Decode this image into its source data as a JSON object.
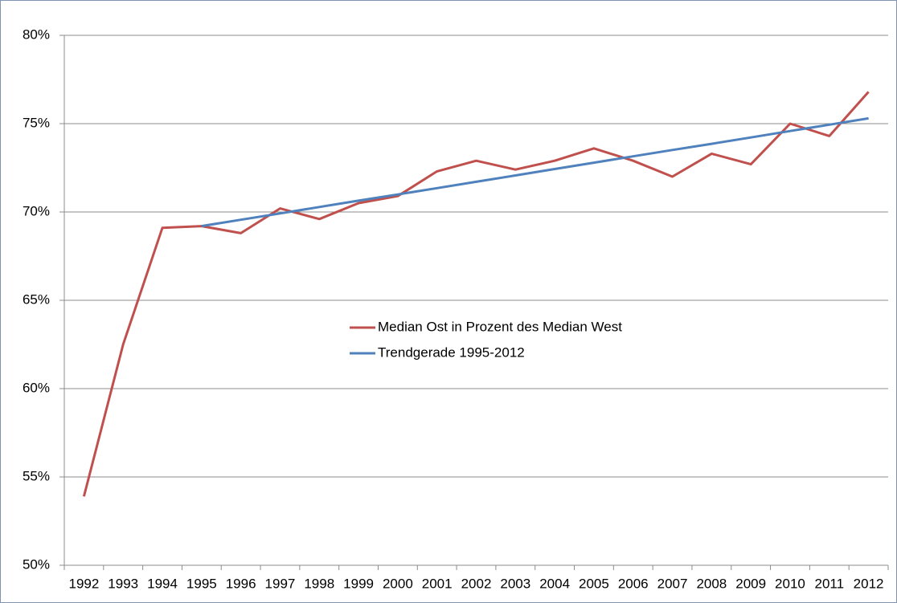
{
  "chart_data": {
    "type": "line",
    "categories": [
      "1992",
      "1993",
      "1994",
      "1995",
      "1996",
      "1997",
      "1998",
      "1999",
      "2000",
      "2001",
      "2002",
      "2003",
      "2004",
      "2005",
      "2006",
      "2007",
      "2008",
      "2009",
      "2010",
      "2011",
      "2012"
    ],
    "series": [
      {
        "name": "Median Ost in Prozent des Median West",
        "color": "#c0504d",
        "values": [
          53.9,
          62.5,
          69.1,
          69.2,
          68.8,
          70.2,
          69.6,
          70.5,
          70.9,
          72.3,
          72.9,
          72.4,
          72.9,
          73.6,
          72.9,
          72.0,
          73.3,
          72.7,
          75.0,
          74.3,
          76.8
        ]
      },
      {
        "name": "Trendgerade 1995-2012",
        "color": "#4f81bd",
        "values": [
          null,
          null,
          null,
          69.2,
          69.56,
          69.92,
          70.28,
          70.64,
          70.99,
          71.35,
          71.71,
          72.07,
          72.43,
          72.79,
          73.15,
          73.51,
          73.86,
          74.22,
          74.58,
          74.94,
          75.3
        ]
      }
    ],
    "ylim": [
      50,
      80
    ],
    "yticks": [
      {
        "value": 50,
        "label": "50%"
      },
      {
        "value": 55,
        "label": "55%"
      },
      {
        "value": 60,
        "label": "60%"
      },
      {
        "value": 65,
        "label": "65%"
      },
      {
        "value": 70,
        "label": "70%"
      },
      {
        "value": 75,
        "label": "75%"
      },
      {
        "value": 80,
        "label": "80%"
      }
    ],
    "grid": true,
    "legend": "center"
  }
}
